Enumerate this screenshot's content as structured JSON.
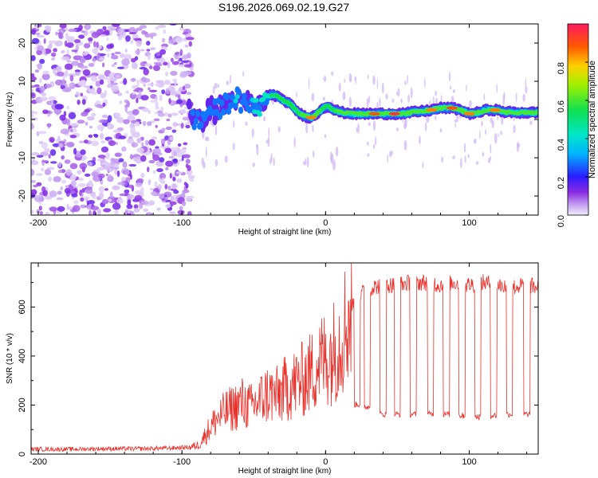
{
  "title": "S196.2026.069.02.19.G27",
  "chart_data": [
    {
      "type": "heatmap",
      "name": "spectrogram",
      "xlabel": "Height of straight line (km)",
      "ylabel": "Frequency (Hz)",
      "xlim": [
        -205,
        148
      ],
      "ylim": [
        -25,
        25
      ],
      "xticks": [
        -200,
        -100,
        0,
        100
      ],
      "yticks": [
        -20,
        -10,
        0,
        10,
        20
      ],
      "colorbar": {
        "label": "Normalized spectral amplitude",
        "range": [
          0.0,
          1.0
        ],
        "ticks": [
          "0.0",
          "0.2",
          "0.4",
          "0.6",
          "0.8"
        ],
        "tick_values": [
          0.0,
          0.2,
          0.4,
          0.6,
          0.8
        ]
      },
      "noise_region": {
        "x_range": [
          -205,
          -93
        ],
        "freq_range": [
          -25,
          25
        ],
        "amplitude": "low"
      },
      "signal_ridge": [
        {
          "x": -95,
          "freq": 4.0,
          "amp": 0.15
        },
        {
          "x": -92,
          "freq": 0.5,
          "amp": 0.3
        },
        {
          "x": -88,
          "freq": -1.0,
          "amp": 0.35
        },
        {
          "x": -84,
          "freq": 1.0,
          "amp": 0.3
        },
        {
          "x": -80,
          "freq": 3.0,
          "amp": 0.3
        },
        {
          "x": -76,
          "freq": 2.0,
          "amp": 0.35
        },
        {
          "x": -72,
          "freq": 3.5,
          "amp": 0.3
        },
        {
          "x": -66,
          "freq": 5.0,
          "amp": 0.35
        },
        {
          "x": -62,
          "freq": 6.0,
          "amp": 0.4
        },
        {
          "x": -58,
          "freq": 3.0,
          "amp": 0.35
        },
        {
          "x": -54,
          "freq": 5.0,
          "amp": 0.35
        },
        {
          "x": -50,
          "freq": 2.5,
          "amp": 0.4
        },
        {
          "x": -46,
          "freq": 3.5,
          "amp": 0.45
        },
        {
          "x": -42,
          "freq": 5.5,
          "amp": 0.5
        },
        {
          "x": -38,
          "freq": 6.5,
          "amp": 0.55
        },
        {
          "x": -34,
          "freq": 6.2,
          "amp": 0.55
        },
        {
          "x": -30,
          "freq": 5.0,
          "amp": 0.55
        },
        {
          "x": -26,
          "freq": 4.5,
          "amp": 0.55
        },
        {
          "x": -22,
          "freq": 3.0,
          "amp": 0.55
        },
        {
          "x": -18,
          "freq": 1.5,
          "amp": 0.55
        },
        {
          "x": -14,
          "freq": 0.8,
          "amp": 0.7
        },
        {
          "x": -10,
          "freq": 0.5,
          "amp": 0.85
        },
        {
          "x": -6,
          "freq": 1.5,
          "amp": 0.6
        },
        {
          "x": -2,
          "freq": 3.0,
          "amp": 0.55
        },
        {
          "x": 2,
          "freq": 3.5,
          "amp": 0.55
        },
        {
          "x": 6,
          "freq": 2.5,
          "amp": 0.55
        },
        {
          "x": 12,
          "freq": 1.8,
          "amp": 0.65
        },
        {
          "x": 20,
          "freq": 1.5,
          "amp": 0.65
        },
        {
          "x": 28,
          "freq": 1.5,
          "amp": 0.7
        },
        {
          "x": 34,
          "freq": 1.5,
          "amp": 0.9
        },
        {
          "x": 42,
          "freq": 1.5,
          "amp": 0.75
        },
        {
          "x": 48,
          "freq": 1.5,
          "amp": 0.95
        },
        {
          "x": 56,
          "freq": 1.6,
          "amp": 0.7
        },
        {
          "x": 62,
          "freq": 2.0,
          "amp": 0.65
        },
        {
          "x": 68,
          "freq": 2.2,
          "amp": 0.7
        },
        {
          "x": 74,
          "freq": 2.5,
          "amp": 0.85
        },
        {
          "x": 80,
          "freq": 3.0,
          "amp": 0.75
        },
        {
          "x": 88,
          "freq": 3.0,
          "amp": 0.9
        },
        {
          "x": 94,
          "freq": 2.5,
          "amp": 0.75
        },
        {
          "x": 100,
          "freq": 1.5,
          "amp": 0.85
        },
        {
          "x": 106,
          "freq": 1.8,
          "amp": 0.7
        },
        {
          "x": 112,
          "freq": 2.5,
          "amp": 0.7
        },
        {
          "x": 118,
          "freq": 2.5,
          "amp": 0.85
        },
        {
          "x": 124,
          "freq": 2.0,
          "amp": 0.7
        },
        {
          "x": 132,
          "freq": 1.8,
          "amp": 0.7
        },
        {
          "x": 140,
          "freq": 1.8,
          "amp": 0.7
        },
        {
          "x": 148,
          "freq": 1.8,
          "amp": 0.7
        }
      ]
    },
    {
      "type": "line",
      "name": "snr",
      "xlabel": "Height of straight line (km)",
      "ylabel": "SNR (10 * v/v)",
      "xlim": [
        -205,
        148
      ],
      "ylim": [
        0,
        780
      ],
      "xticks": [
        -200,
        -100,
        0,
        100
      ],
      "yticks": [
        0,
        200,
        400,
        600
      ],
      "color": "#e8322c",
      "series": [
        {
          "name": "SNR",
          "x": [
            -205,
            -180,
            -155,
            -130,
            -110,
            -95,
            -88,
            -82,
            -76,
            -70,
            -64,
            -58,
            -52,
            -46,
            -40,
            -34,
            -28,
            -22,
            -16,
            -10,
            -4,
            2,
            8,
            14,
            20,
            26,
            32,
            40,
            50,
            60,
            70,
            80,
            90,
            100,
            110,
            120,
            130,
            140,
            148
          ],
          "y": [
            20,
            20,
            22,
            22,
            24,
            28,
            40,
            100,
            150,
            180,
            200,
            220,
            200,
            230,
            260,
            250,
            280,
            300,
            320,
            350,
            400,
            420,
            460,
            560,
            620,
            660,
            680,
            690,
            690,
            700,
            700,
            690,
            700,
            690,
            700,
            690,
            680,
            690,
            680
          ]
        }
      ],
      "dropouts": [
        {
          "x": 22,
          "y": 190
        },
        {
          "x": 29,
          "y": 180
        },
        {
          "x": 40,
          "y": 150
        },
        {
          "x": 50,
          "y": 150
        },
        {
          "x": 61,
          "y": 150
        },
        {
          "x": 73,
          "y": 150
        },
        {
          "x": 84,
          "y": 150
        },
        {
          "x": 95,
          "y": 145
        },
        {
          "x": 106,
          "y": 140
        },
        {
          "x": 117,
          "y": 145
        },
        {
          "x": 128,
          "y": 150
        },
        {
          "x": 140,
          "y": 150
        }
      ]
    }
  ]
}
